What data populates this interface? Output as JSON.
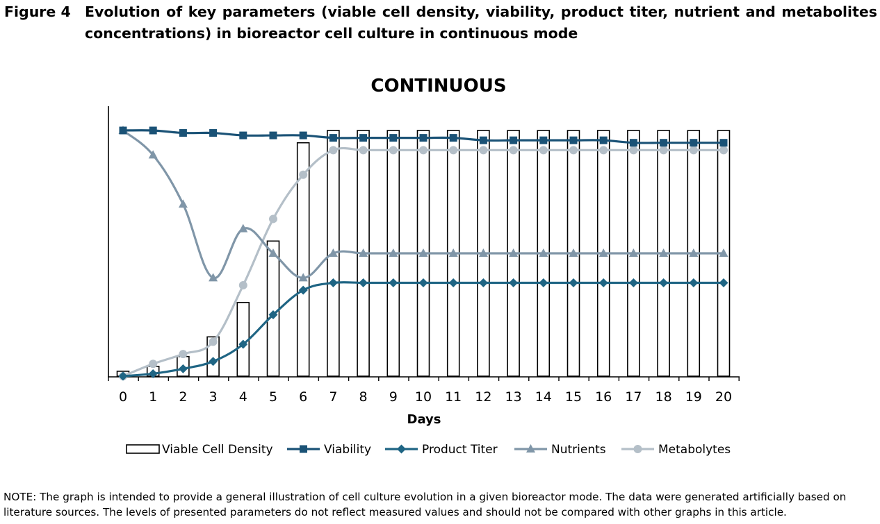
{
  "figure": {
    "label": "Figure 4",
    "caption": "Evolution of key parameters (viable cell density, viability, product titer, nutrient and metabolites concentrations) in bioreactor cell culture in continuous mode"
  },
  "note": "NOTE: The graph is intended to provide a general illustration of cell culture evolution in a given bioreactor mode. The data were generated artificially based on literature sources. The levels of presented parameters do not reflect measured values and should not be compared with other graphs in this article.",
  "chart_data": {
    "type": "bar+line",
    "title": "CONTINUOUS",
    "xlabel": "Days",
    "ylabel": "",
    "ylim": [
      0,
      100
    ],
    "categories": [
      "0",
      "1",
      "2",
      "3",
      "4",
      "5",
      "6",
      "7",
      "8",
      "9",
      "10",
      "11",
      "12",
      "13",
      "14",
      "15",
      "16",
      "17",
      "18",
      "19",
      "20"
    ],
    "series": [
      {
        "name": "Viable Cell Density",
        "type": "bar",
        "color": "#000000",
        "values": [
          2,
          4,
          8,
          16,
          30,
          55,
          95,
          100,
          100,
          100,
          100,
          100,
          100,
          100,
          100,
          100,
          100,
          100,
          100,
          100,
          100
        ]
      },
      {
        "name": "Viability",
        "type": "line",
        "marker": "square",
        "color": "#1a5276",
        "values": [
          100,
          100,
          99,
          99,
          98,
          98,
          98,
          97,
          97,
          97,
          97,
          97,
          96,
          96,
          96,
          96,
          96,
          95,
          95,
          95,
          95
        ]
      },
      {
        "name": "Product Titer",
        "type": "line",
        "marker": "diamond",
        "color": "#1f6584",
        "values": [
          0,
          1,
          3,
          6,
          13,
          25,
          35,
          38,
          38,
          38,
          38,
          38,
          38,
          38,
          38,
          38,
          38,
          38,
          38,
          38,
          38
        ]
      },
      {
        "name": "Nutrients",
        "type": "line",
        "marker": "triangle",
        "color": "#8096a8",
        "values": [
          100,
          90,
          70,
          40,
          60,
          50,
          40,
          50,
          50,
          50,
          50,
          50,
          50,
          50,
          50,
          50,
          50,
          50,
          50,
          50,
          50
        ]
      },
      {
        "name": "Metabolytes",
        "type": "line",
        "marker": "circle",
        "color": "#b4bfc8",
        "values": [
          0,
          5,
          9,
          14,
          37,
          64,
          82,
          92,
          92,
          92,
          92,
          92,
          92,
          92,
          92,
          92,
          92,
          92,
          92,
          92,
          92
        ]
      }
    ],
    "legend_position": "bottom"
  }
}
